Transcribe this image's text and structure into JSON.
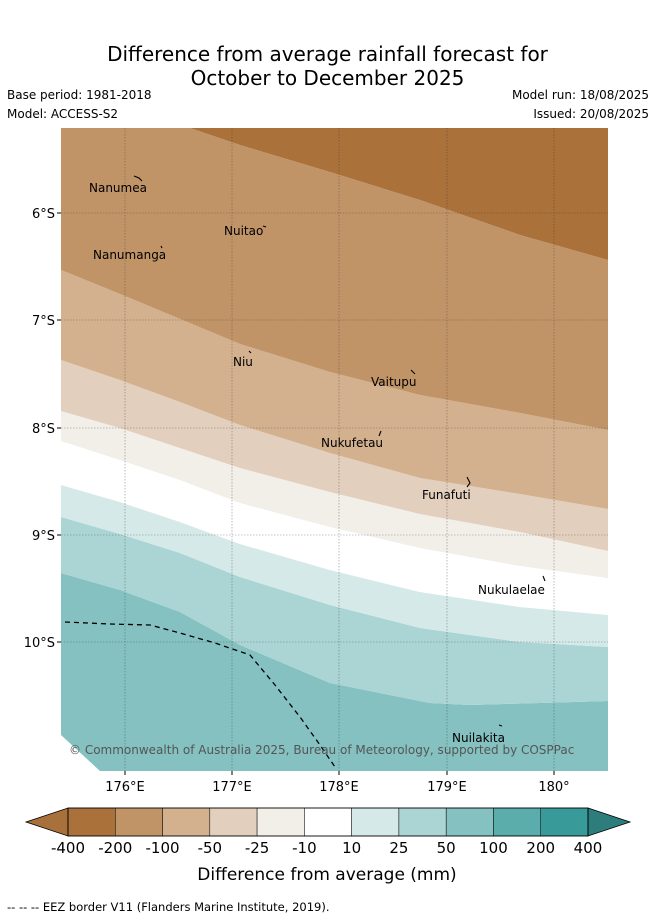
{
  "title": {
    "line1": "Difference from average rainfall forecast for",
    "line2": "October to December 2025"
  },
  "meta": {
    "base_period": "Base period: 1981-2018",
    "model": "Model: ACCESS-S2",
    "model_run": "Model run: 18/08/2025",
    "issued": "Issued: 20/08/2025"
  },
  "map": {
    "lat_labels": [
      "6°S",
      "7°S",
      "8°S",
      "9°S",
      "10°S"
    ],
    "lon_labels": [
      "176°E",
      "177°E",
      "178°E",
      "179°E",
      "180°"
    ],
    "places": [
      {
        "name": "Nanumea"
      },
      {
        "name": "Nuitao"
      },
      {
        "name": "Nanumanga"
      },
      {
        "name": "Niu"
      },
      {
        "name": "Vaitupu"
      },
      {
        "name": "Nukufetau"
      },
      {
        "name": "Funafuti"
      },
      {
        "name": "Nukulaelae"
      },
      {
        "name": "Nuilakita"
      }
    ],
    "credit": "© Commonwealth of Australia 2025, Bureau of Meteorology, supported by COSPPac"
  },
  "colorbar": {
    "ticks": [
      "-400",
      "-200",
      "-100",
      "-50",
      "-25",
      "-10",
      "10",
      "25",
      "50",
      "100",
      "200",
      "400"
    ],
    "colors": [
      "#aa713a",
      "#c19468",
      "#d3b18f",
      "#e3cfbd",
      "#f2eee8",
      "#ffffff",
      "#d5e9e8",
      "#aad5d4",
      "#84c1c0",
      "#5badac",
      "#389b9a"
    ],
    "under_color": "#a8703a",
    "over_color": "#2c7d7c",
    "label": "Difference from average (mm)"
  },
  "footer": "--  --  -- EEZ border V11 (Flanders Marine Institute, 2019)."
}
